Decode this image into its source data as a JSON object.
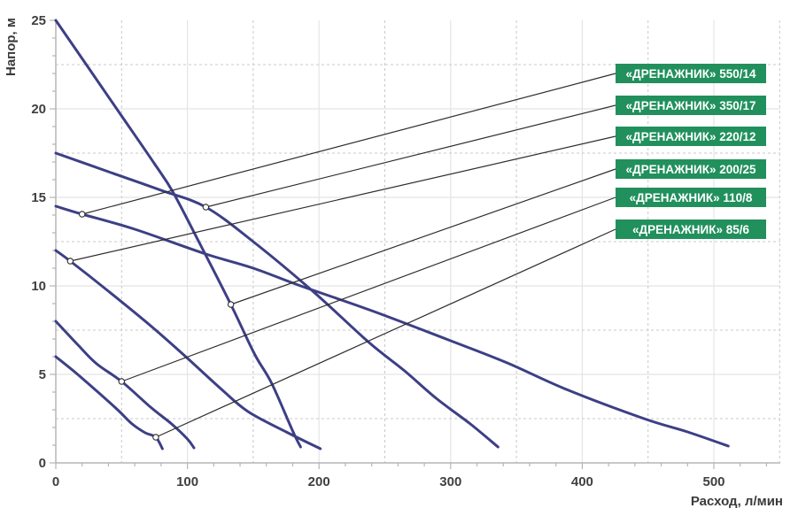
{
  "chart_data": {
    "type": "line",
    "title": "",
    "xlabel": "Расход, л/мин",
    "ylabel": "Напор, м",
    "xlim": [
      0,
      550
    ],
    "ylim": [
      0,
      25
    ],
    "grid": "on",
    "legend_position": "right",
    "x_major_ticks": [
      0,
      100,
      200,
      300,
      400,
      500
    ],
    "x_minor_step": 20,
    "x_minor_max": 540,
    "y_major_ticks": [
      0,
      5,
      10,
      15,
      20,
      25
    ],
    "y_minor_step": 1,
    "grid_solid_x": [
      100,
      200,
      300,
      400,
      500
    ],
    "grid_dashed_x": [
      50,
      150,
      250,
      350,
      450,
      550
    ],
    "grid_solid_y": [
      5,
      10,
      15,
      20
    ],
    "grid_dashed_y": [
      2.5,
      7.5,
      12.5,
      17.5,
      22.5
    ],
    "series": [
      {
        "name": "«ДРЕНАЖНИК» 550/14",
        "marker": [
          20,
          14.05
        ],
        "points": [
          [
            0,
            14.5
          ],
          [
            20,
            14.05
          ],
          [
            60,
            13.2
          ],
          [
            114,
            11.8
          ],
          [
            150,
            11.0
          ],
          [
            186,
            10.0
          ],
          [
            240,
            8.6
          ],
          [
            300,
            6.9
          ],
          [
            343,
            5.65
          ],
          [
            388,
            4.15
          ],
          [
            447,
            2.5
          ],
          [
            480,
            1.75
          ],
          [
            511,
            0.95
          ]
        ]
      },
      {
        "name": "«ДРЕНАЖНИК» 350/17",
        "marker": [
          114,
          14.45
        ],
        "points": [
          [
            0,
            17.5
          ],
          [
            40,
            16.45
          ],
          [
            80,
            15.4
          ],
          [
            114,
            14.45
          ],
          [
            150,
            12.5
          ],
          [
            196,
            9.65
          ],
          [
            238,
            6.8
          ],
          [
            265,
            5.2
          ],
          [
            289,
            3.65
          ],
          [
            315,
            2.2
          ],
          [
            336,
            0.9
          ]
        ]
      },
      {
        "name": "«ДРЕНАЖНИК» 220/12",
        "marker": [
          11,
          11.4
        ],
        "points": [
          [
            0,
            12
          ],
          [
            11,
            11.4
          ],
          [
            40,
            9.7
          ],
          [
            72,
            7.75
          ],
          [
            98,
            6.05
          ],
          [
            126,
            4.15
          ],
          [
            146,
            2.9
          ],
          [
            175,
            1.75
          ],
          [
            201,
            0.8
          ]
        ]
      },
      {
        "name": "«ДРЕНАЖНИК» 200/25",
        "marker": [
          133,
          8.95
        ],
        "points": [
          [
            0,
            25
          ],
          [
            25,
            22.3
          ],
          [
            50,
            19.6
          ],
          [
            75,
            16.9
          ],
          [
            89,
            15.3
          ],
          [
            110,
            12.3
          ],
          [
            133,
            8.95
          ],
          [
            151,
            6.15
          ],
          [
            164,
            4.5
          ],
          [
            180,
            1.8
          ],
          [
            186,
            0.9
          ]
        ]
      },
      {
        "name": "«ДРЕНАЖНИК» 110/8",
        "marker": [
          50,
          4.6
        ],
        "points": [
          [
            0,
            8
          ],
          [
            17,
            6.65
          ],
          [
            31,
            5.6
          ],
          [
            50,
            4.6
          ],
          [
            72,
            3.15
          ],
          [
            88,
            2.2
          ],
          [
            100,
            1.35
          ],
          [
            105,
            0.85
          ]
        ]
      },
      {
        "name": "«ДРЕНАЖНИК» 85/6",
        "marker": [
          76,
          1.45
        ],
        "points": [
          [
            0,
            6
          ],
          [
            15,
            5.1
          ],
          [
            32,
            4.0
          ],
          [
            47,
            3.0
          ],
          [
            58,
            2.2
          ],
          [
            68,
            1.7
          ],
          [
            76,
            1.45
          ],
          [
            81,
            0.8
          ]
        ]
      }
    ],
    "colors": {
      "curve": "#3d3f85",
      "label_bg": "#21905d",
      "label_text": "#ffffff",
      "leader": "#2e2e2e",
      "grid_solid": "#e4e4e4",
      "grid_dashed": "#c9c9c9",
      "axis": "#b5b5b5",
      "tick_text": "#3f3f3f"
    }
  }
}
